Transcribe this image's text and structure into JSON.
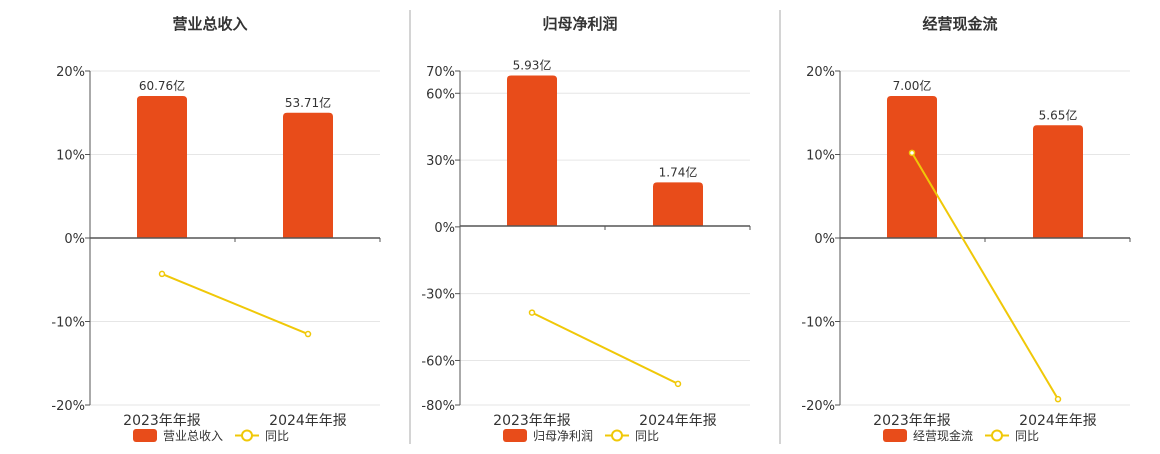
{
  "palette": {
    "bar": "#e84c1a",
    "line": "#f0c808",
    "axis": "#555555",
    "grid": "#e6e6e6",
    "divider": "#aaaaaa",
    "text": "#333333"
  },
  "chart_data": [
    {
      "type": "bar",
      "title": "营业总收入",
      "categories": [
        "2023年年报",
        "2024年年报"
      ],
      "ylim": [
        -20,
        20
      ],
      "yticks": [
        20,
        10,
        0,
        -10,
        -20
      ],
      "ytick_labels": [
        "20%",
        "10%",
        "0%",
        "-10%",
        "-20%"
      ],
      "grid": true,
      "legend_position": "bottom",
      "series": [
        {
          "name": "营业总收入",
          "type": "bar",
          "values": [
            17,
            15
          ],
          "labels": [
            "60.76亿",
            "53.71亿"
          ]
        },
        {
          "name": "同比",
          "type": "line",
          "values": [
            -4.3,
            -11.5
          ]
        }
      ]
    },
    {
      "type": "bar",
      "title": "归母净利润",
      "categories": [
        "2023年年报",
        "2024年年报"
      ],
      "ylim": [
        -80,
        70
      ],
      "yticks": [
        70,
        60,
        30,
        0,
        -30,
        -60,
        -80
      ],
      "ytick_labels": [
        "70%",
        "60%",
        "30%",
        "0%",
        "-30%",
        "-60%",
        "-80%"
      ],
      "grid": true,
      "legend_position": "bottom",
      "series": [
        {
          "name": "归母净利润",
          "type": "bar",
          "values": [
            68,
            20
          ],
          "labels": [
            "5.93亿",
            "1.74亿"
          ]
        },
        {
          "name": "同比",
          "type": "line",
          "values": [
            -38.5,
            -70.5
          ]
        }
      ]
    },
    {
      "type": "bar",
      "title": "经营现金流",
      "categories": [
        "2023年年报",
        "2024年年报"
      ],
      "ylim": [
        -20,
        20
      ],
      "yticks": [
        20,
        10,
        0,
        -10,
        -20
      ],
      "ytick_labels": [
        "20%",
        "10%",
        "0%",
        "-10%",
        "-20%"
      ],
      "grid": true,
      "legend_position": "bottom",
      "series": [
        {
          "name": "经营现金流",
          "type": "bar",
          "values": [
            17,
            13.5
          ],
          "labels": [
            "7.00亿",
            "5.65亿"
          ]
        },
        {
          "name": "同比",
          "type": "line",
          "values": [
            10.2,
            -19.3
          ]
        }
      ]
    }
  ]
}
